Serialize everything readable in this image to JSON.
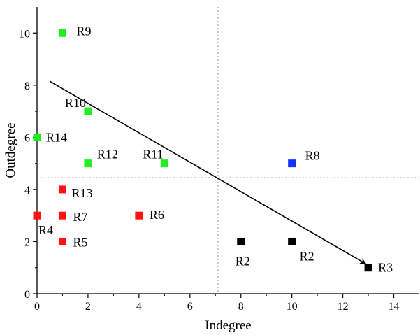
{
  "chart_data": {
    "type": "scatter",
    "title": "",
    "xlabel": "Indegree",
    "ylabel": "Outdegree",
    "xlim": [
      0,
      15
    ],
    "ylim": [
      0,
      11
    ],
    "x_ticks": [
      0,
      2,
      4,
      6,
      8,
      10,
      12,
      14
    ],
    "y_ticks": [
      0,
      2,
      4,
      6,
      8,
      10
    ],
    "grid": false,
    "reference_lines": {
      "x": 7.1,
      "y": 4.45,
      "style": "dotted",
      "color": "#999999"
    },
    "trend_arrow": {
      "from": [
        0.5,
        8.15
      ],
      "to": [
        12.9,
        1.15
      ],
      "color": "#000000"
    },
    "colors": {
      "green": "#22ee22",
      "red": "#ff1111",
      "blue": "#1133ff",
      "black": "#000000"
    },
    "points": [
      {
        "label": "R9",
        "x": 1,
        "y": 10,
        "color": "green"
      },
      {
        "label": "R10",
        "x": 2,
        "y": 7,
        "color": "green"
      },
      {
        "label": "R14",
        "x": 0,
        "y": 6,
        "color": "green"
      },
      {
        "label": "R12",
        "x": 2,
        "y": 5,
        "color": "green"
      },
      {
        "label": "R11",
        "x": 5,
        "y": 5,
        "color": "green"
      },
      {
        "label": "R8",
        "x": 10,
        "y": 5,
        "color": "blue"
      },
      {
        "label": "R13",
        "x": 1,
        "y": 4,
        "color": "red"
      },
      {
        "label": "R4",
        "x": 0,
        "y": 3,
        "color": "red"
      },
      {
        "label": "R7",
        "x": 1,
        "y": 3,
        "color": "red"
      },
      {
        "label": "R6",
        "x": 4,
        "y": 3,
        "color": "red"
      },
      {
        "label": "R5",
        "x": 1,
        "y": 2,
        "color": "red"
      },
      {
        "label": "R2",
        "x": 8,
        "y": 2,
        "color": "black"
      },
      {
        "label": "R2",
        "x": 10,
        "y": 2,
        "color": "black"
      },
      {
        "label": "R3",
        "x": 13,
        "y": 1,
        "color": "black"
      }
    ]
  }
}
